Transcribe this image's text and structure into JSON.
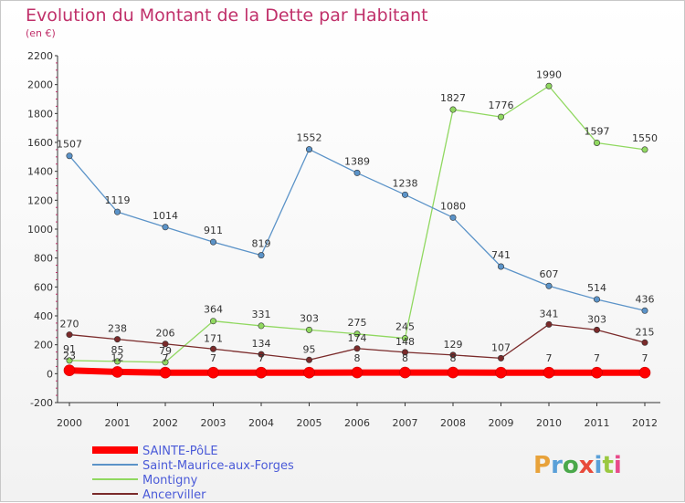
{
  "header": {
    "title": "Evolution du Montant de la Dette par Habitant",
    "subtitle": "(en €)"
  },
  "brand": {
    "text": "Proxiti",
    "colors": [
      "#e8a23a",
      "#5aa0d8",
      "#4aa84a",
      "#e84a3a",
      "#5aa0d8",
      "#9ac840",
      "#e84a8a"
    ]
  },
  "chart_data": {
    "type": "line",
    "title": "Evolution du Montant de la Dette par Habitant",
    "subtitle": "(en €)",
    "categories": [
      "2000",
      "2001",
      "2002",
      "2003",
      "2004",
      "2005",
      "2006",
      "2007",
      "2008",
      "2009",
      "2010",
      "2011",
      "2012"
    ],
    "ylim": [
      -200,
      2200
    ],
    "yticks": [
      -200,
      0,
      200,
      400,
      600,
      800,
      1000,
      1200,
      1400,
      1600,
      1800,
      2000,
      2200
    ],
    "grid": false,
    "legend_position": "bottom-left",
    "series": [
      {
        "name": "SAINTE-PôLE",
        "color": "#ff0000",
        "values": [
          23,
          12,
          7,
          7,
          7,
          7,
          8,
          8,
          8,
          7,
          7,
          7,
          7
        ],
        "labels": [
          "23",
          "12",
          "7",
          "7",
          "7",
          "",
          "8",
          "8",
          "8",
          "",
          "7",
          "7",
          "7"
        ]
      },
      {
        "name": "Saint-Maurice-aux-Forges",
        "color": "#5b93c8",
        "values": [
          1507,
          1119,
          1014,
          911,
          819,
          1552,
          1389,
          1238,
          1080,
          741,
          607,
          514,
          436
        ],
        "labels": [
          "1507",
          "1119",
          "1014",
          "911",
          "819",
          "1552",
          "1389",
          "1238",
          "1080",
          "741",
          "607",
          "514",
          "436"
        ]
      },
      {
        "name": "Montigny",
        "color": "#90d860",
        "values": [
          91,
          85,
          79,
          364,
          331,
          303,
          275,
          245,
          1827,
          1776,
          1990,
          1597,
          1550
        ],
        "labels": [
          "91",
          "85",
          "79",
          "364",
          "331",
          "303",
          "275",
          "245",
          "1827",
          "1776",
          "1990",
          "1597",
          "1550"
        ]
      },
      {
        "name": "Ancerviller",
        "color": "#7a2a2a",
        "values": [
          270,
          238,
          206,
          171,
          134,
          95,
          174,
          148,
          129,
          107,
          341,
          303,
          215
        ],
        "labels": [
          "270",
          "238",
          "206",
          "171",
          "134",
          "95",
          "174",
          "148",
          "129",
          "107",
          "341",
          "303",
          "215"
        ]
      }
    ]
  }
}
